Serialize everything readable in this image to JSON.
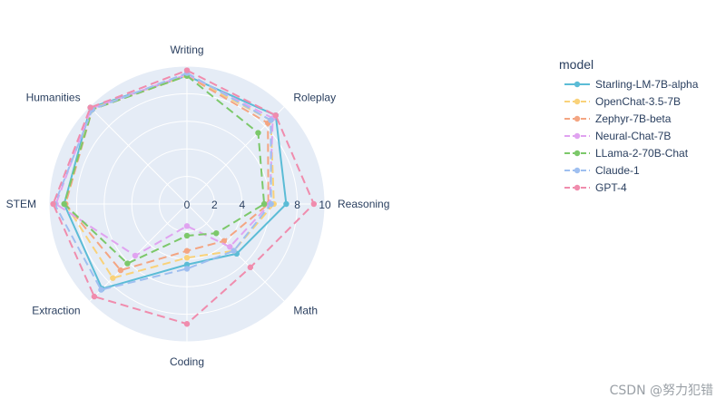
{
  "chart_data": {
    "type": "radar",
    "axes": [
      "Writing",
      "Roleplay",
      "Reasoning",
      "Math",
      "Coding",
      "Extraction",
      "STEM",
      "Humanities"
    ],
    "radial_range": [
      0,
      10
    ],
    "radial_ticks": [
      "0",
      "2",
      "4",
      "6",
      "8",
      "10"
    ],
    "legend_title": "model",
    "series": [
      {
        "name": "Starling-LM-7B-alpha",
        "color": "#5bbcd6",
        "dash": "solid",
        "values": [
          9.3,
          9.1,
          7.2,
          5.1,
          4.4,
          8.7,
          8.9,
          9.9
        ]
      },
      {
        "name": "OpenChat-3.5-7B",
        "color": "#f9d27a",
        "dash": "dash",
        "values": [
          9.3,
          8.6,
          6.3,
          4.8,
          3.9,
          7.6,
          8.8,
          9.8
        ]
      },
      {
        "name": "Zephyr-7B-beta",
        "color": "#f4a582",
        "dash": "dash",
        "values": [
          9.3,
          8.3,
          5.9,
          3.8,
          3.4,
          6.8,
          8.8,
          9.7
        ]
      },
      {
        "name": "Neural-Chat-7B",
        "color": "#e0a3f0",
        "dash": "dash",
        "values": [
          9.4,
          8.8,
          6.0,
          4.4,
          1.6,
          5.3,
          9.5,
          9.8
        ]
      },
      {
        "name": "LLama-2-70B-Chat",
        "color": "#7cc86a",
        "dash": "dash",
        "values": [
          9.3,
          7.3,
          5.6,
          3.0,
          2.3,
          6.1,
          8.9,
          9.7
        ]
      },
      {
        "name": "Claude-1",
        "color": "#9fbff0",
        "dash": "dash",
        "values": [
          9.5,
          8.6,
          6.1,
          4.8,
          4.7,
          8.8,
          9.6,
          9.7
        ]
      },
      {
        "name": "GPT-4",
        "color": "#f08cad",
        "dash": "dash",
        "values": [
          9.7,
          9.1,
          9.2,
          6.5,
          8.7,
          9.5,
          9.7,
          9.9
        ]
      }
    ]
  },
  "watermark": "CSDN @努力犯错"
}
